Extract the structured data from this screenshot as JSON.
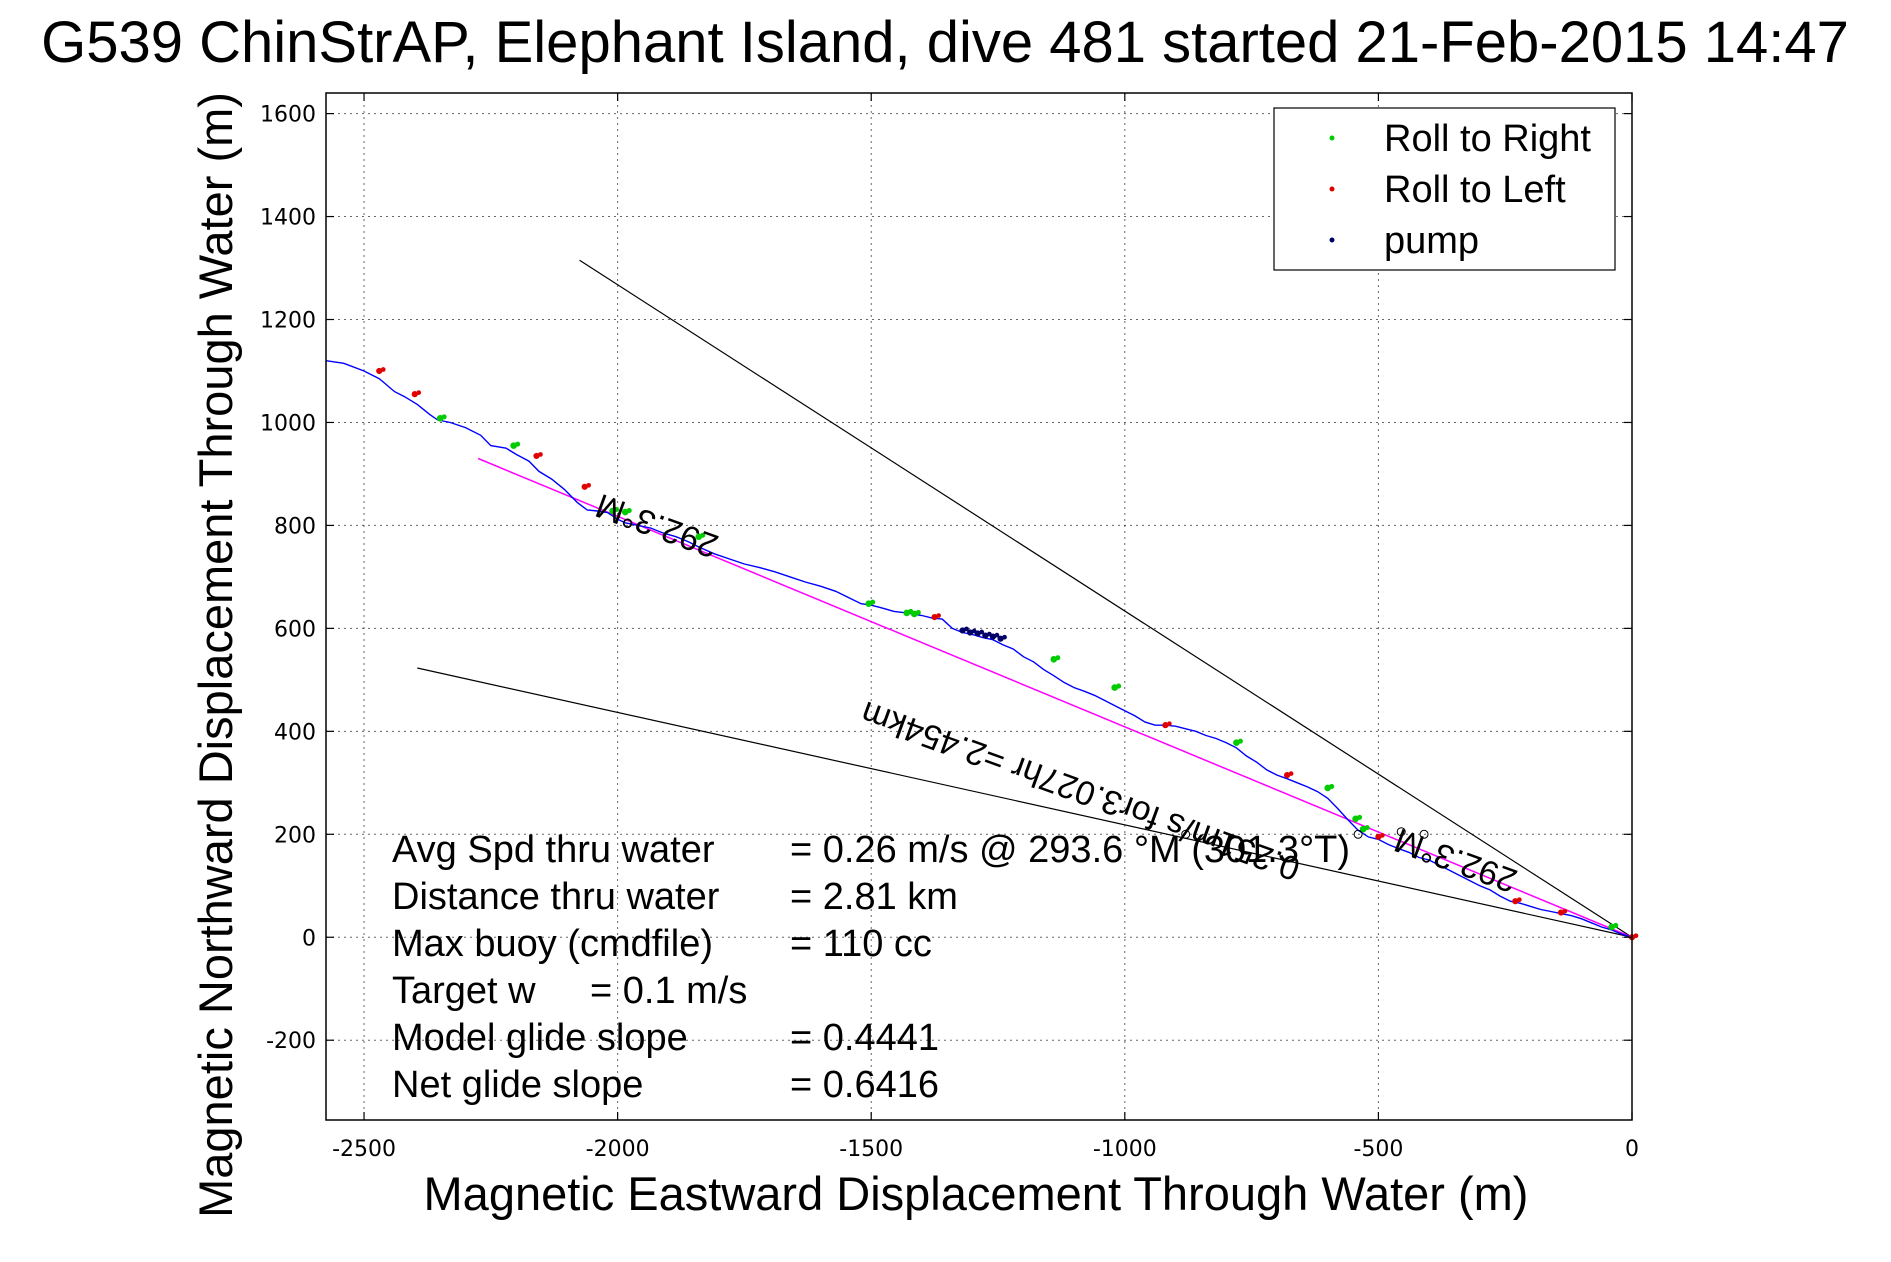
{
  "chart_data": {
    "type": "scatter",
    "title": "G539 ChinStrAP, Elephant Island, dive 481 started 21-Feb-2015 14:47",
    "xlabel": "Magnetic Eastward Displacement Through Water (m)",
    "ylabel": "Magnetic Northward Displacement Through Water (m)",
    "xlim": [
      -2575,
      0
    ],
    "ylim": [
      -355,
      1640
    ],
    "xticks": [
      -2500,
      -2000,
      -1500,
      -1000,
      -500,
      0
    ],
    "yticks": [
      -200,
      0,
      200,
      400,
      600,
      800,
      1000,
      1200,
      1400,
      1600
    ],
    "xtick_labels": [
      "-2500",
      "-2000",
      "-1500",
      "-1000",
      "-500",
      "0"
    ],
    "ytick_labels": [
      "-200",
      "0",
      "200",
      "400",
      "600",
      "800",
      "1000",
      "1200",
      "1400",
      "1600"
    ],
    "grid": true,
    "legend_position": "top-right",
    "legend": [
      {
        "label": "Roll to Right",
        "color": "#00cc00"
      },
      {
        "label": "Roll to Left",
        "color": "#e00000"
      },
      {
        "label": "pump",
        "color": "#000066"
      }
    ],
    "colors": {
      "track": "#0000ff",
      "fit_line": "#ff00ff",
      "bound_lines": "#000000",
      "roll_right": "#00cc00",
      "roll_left": "#e00000",
      "pump": "#000066"
    },
    "series": [
      {
        "name": "track",
        "x": [
          -2575,
          -2540,
          -2500,
          -2470,
          -2440,
          -2420,
          -2395,
          -2370,
          -2355,
          -2330,
          -2300,
          -2270,
          -2250,
          -2220,
          -2200,
          -2175,
          -2155,
          -2130,
          -2105,
          -2080,
          -2060,
          -2040,
          -2020,
          -2000,
          -1985,
          -1960,
          -1935,
          -1910,
          -1885,
          -1860,
          -1840,
          -1810,
          -1780,
          -1750,
          -1720,
          -1690,
          -1660,
          -1630,
          -1600,
          -1570,
          -1545,
          -1520,
          -1500,
          -1480,
          -1455,
          -1430,
          -1400,
          -1380,
          -1360,
          -1340,
          -1320,
          -1300,
          -1280,
          -1260,
          -1240,
          -1220,
          -1200,
          -1180,
          -1160,
          -1140,
          -1120,
          -1100,
          -1080,
          -1060,
          -1040,
          -1020,
          -1000,
          -980,
          -960,
          -940,
          -920,
          -900,
          -880,
          -860,
          -840,
          -820,
          -800,
          -780,
          -760,
          -740,
          -720,
          -700,
          -680,
          -660,
          -640,
          -620,
          -600,
          -580,
          -560,
          -540,
          -520,
          -500,
          -480,
          -460,
          -440,
          -420,
          -400,
          -380,
          -360,
          -340,
          -320,
          -300,
          -280,
          -260,
          -240,
          -220,
          -200,
          -180,
          -160,
          -140,
          -120,
          -100,
          -80,
          -60,
          -40,
          -20,
          0
        ],
        "y": [
          1120,
          1115,
          1100,
          1085,
          1060,
          1050,
          1035,
          1015,
          1005,
          1000,
          990,
          975,
          955,
          950,
          938,
          925,
          905,
          890,
          870,
          845,
          830,
          828,
          825,
          812,
          805,
          800,
          795,
          785,
          778,
          768,
          758,
          745,
          735,
          725,
          718,
          710,
          700,
          690,
          682,
          672,
          660,
          648,
          645,
          640,
          633,
          630,
          625,
          620,
          618,
          600,
          592,
          588,
          582,
          578,
          568,
          560,
          545,
          535,
          520,
          508,
          495,
          485,
          478,
          470,
          460,
          450,
          440,
          430,
          418,
          412,
          412,
          410,
          405,
          400,
          392,
          386,
          378,
          368,
          352,
          340,
          325,
          315,
          308,
          300,
          292,
          283,
          270,
          250,
          228,
          208,
          195,
          190,
          180,
          172,
          165,
          155,
          150,
          140,
          130,
          120,
          110,
          100,
          92,
          80,
          70,
          66,
          60,
          54,
          50,
          46,
          42,
          36,
          28,
          20,
          14,
          6,
          0
        ]
      },
      {
        "name": "fit",
        "x": [
          -2275,
          0
        ],
        "y": [
          930,
          0
        ]
      }
    ],
    "bounds": [
      {
        "x": [
          -2075,
          0
        ],
        "y": [
          1315,
          0
        ]
      },
      {
        "x": [
          -2395,
          0
        ],
        "y": [
          523,
          0
        ]
      }
    ],
    "roll_right_points": [
      {
        "x": -2350,
        "y": 1008
      },
      {
        "x": -2205,
        "y": 955
      },
      {
        "x": -2010,
        "y": 828
      },
      {
        "x": -1985,
        "y": 826
      },
      {
        "x": -1840,
        "y": 778
      },
      {
        "x": -1505,
        "y": 648
      },
      {
        "x": -1430,
        "y": 630
      },
      {
        "x": -1415,
        "y": 628
      },
      {
        "x": -1140,
        "y": 540
      },
      {
        "x": -1020,
        "y": 485
      },
      {
        "x": -780,
        "y": 378
      },
      {
        "x": -600,
        "y": 290
      },
      {
        "x": -545,
        "y": 230
      },
      {
        "x": -530,
        "y": 210
      },
      {
        "x": -40,
        "y": 20
      }
    ],
    "roll_left_points": [
      {
        "x": -2470,
        "y": 1100
      },
      {
        "x": -2400,
        "y": 1055
      },
      {
        "x": -2160,
        "y": 935
      },
      {
        "x": -2065,
        "y": 875
      },
      {
        "x": -1375,
        "y": 622
      },
      {
        "x": -920,
        "y": 412
      },
      {
        "x": -680,
        "y": 315
      },
      {
        "x": -500,
        "y": 195
      },
      {
        "x": -230,
        "y": 70
      },
      {
        "x": -140,
        "y": 48
      },
      {
        "x": 0,
        "y": 0
      }
    ],
    "pump_points": [
      {
        "x": -1320,
        "y": 596
      },
      {
        "x": -1305,
        "y": 592
      },
      {
        "x": -1290,
        "y": 590
      },
      {
        "x": -1275,
        "y": 586
      },
      {
        "x": -1260,
        "y": 584
      },
      {
        "x": -1245,
        "y": 580
      }
    ],
    "waypoints": [
      {
        "x": -880,
        "y": 200
      },
      {
        "x": -540,
        "y": 200
      },
      {
        "x": -410,
        "y": 200
      },
      {
        "x": -455,
        "y": 205
      }
    ],
    "annotations": [
      {
        "text": "292.3°M",
        "x": -1915,
        "y": 820,
        "rotation": 200
      },
      {
        "text": "0.251m/s for3.027hr =2.454km",
        "x": -1080,
        "y": 305,
        "rotation": 200
      },
      {
        "text": "292.3°M",
        "x": -340,
        "y": 170,
        "rotation": 200
      }
    ],
    "stats": [
      {
        "label": "Avg Spd thru water",
        "value": "=  0.26 m/s @ 293.6  °M (301.3°T)"
      },
      {
        "label": "Distance thru water",
        "value": "=  2.81 km"
      },
      {
        "label": "Max buoy (cmdfile)",
        "value": "= 110 cc"
      },
      {
        "label": "Target w",
        "value": "= 0.1 m/s"
      },
      {
        "label": "Model glide slope",
        "value": "= 0.4441"
      },
      {
        "label": "Net glide slope",
        "value": "= 0.6416"
      }
    ]
  }
}
